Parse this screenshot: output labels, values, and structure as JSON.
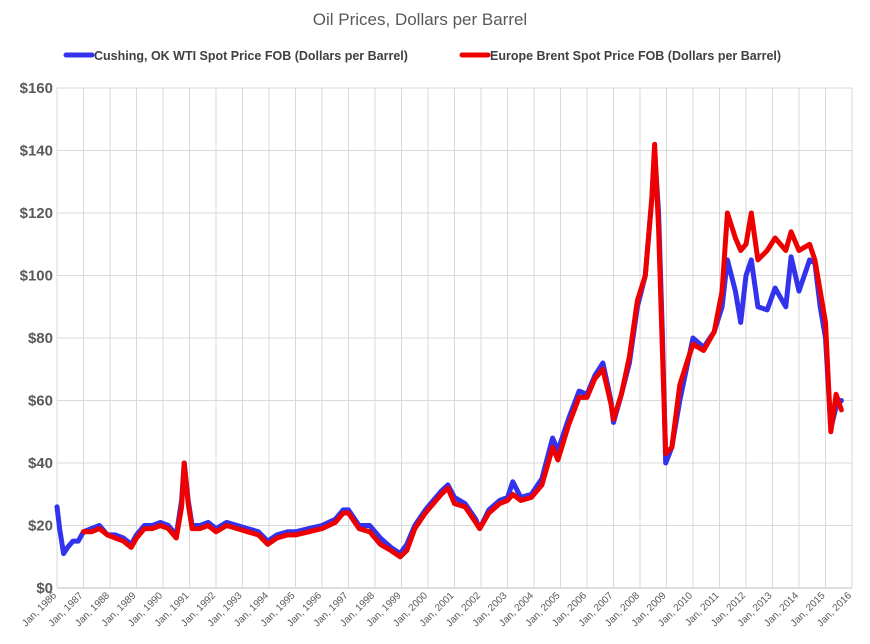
{
  "chart_data": {
    "type": "line",
    "title": "Oil Prices, Dollars  per Barrel",
    "xlabel": "",
    "ylabel": "",
    "ylim": [
      0,
      160
    ],
    "yticks": [
      0,
      20,
      40,
      60,
      80,
      100,
      120,
      140,
      160
    ],
    "ytick_labels": [
      "$0",
      "$20",
      "$40",
      "$60",
      "$80",
      "$100",
      "$120",
      "$140",
      "$160"
    ],
    "xlim": [
      1986,
      2016
    ],
    "xtick_labels": [
      "Jan, 1986",
      "Jan, 1987",
      "Jan, 1988",
      "Jan, 1989",
      "Jan, 1990",
      "Jan, 1991",
      "Jan, 1992",
      "Jan, 1993",
      "Jan, 1994",
      "Jan, 1995",
      "Jan, 1996",
      "Jan, 1997",
      "Jan, 1998",
      "Jan, 1999",
      "Jan, 2000",
      "Jan, 2001",
      "Jan, 2002",
      "Jan, 2003",
      "Jan, 2004",
      "Jan, 2005",
      "Jan, 2006",
      "Jan, 2007",
      "Jan, 2008",
      "Jan, 2009",
      "Jan, 2010",
      "Jan, 2011",
      "Jan, 2012",
      "Jan, 2013",
      "Jan, 2014",
      "Jan, 2015",
      "Jan, 2016"
    ],
    "grid": true,
    "legend_position": "top",
    "series": [
      {
        "name": "Cushing, OK WTI Spot Price FOB (Dollars per Barrel)",
        "color": "#3333ee",
        "x": [
          1986.0,
          1986.1,
          1986.25,
          1986.4,
          1986.6,
          1986.8,
          1987.0,
          1987.3,
          1987.6,
          1987.9,
          1988.2,
          1988.5,
          1988.8,
          1989.0,
          1989.3,
          1989.6,
          1989.9,
          1990.2,
          1990.5,
          1990.7,
          1990.8,
          1990.95,
          1991.1,
          1991.4,
          1991.7,
          1992.0,
          1992.4,
          1992.8,
          1993.2,
          1993.6,
          1993.95,
          1994.3,
          1994.7,
          1995.0,
          1995.5,
          1996.0,
          1996.5,
          1996.8,
          1997.0,
          1997.4,
          1997.8,
          1998.2,
          1998.6,
          1998.95,
          1999.2,
          1999.5,
          1999.9,
          2000.2,
          2000.5,
          2000.75,
          2001.0,
          2001.4,
          2001.8,
          2001.95,
          2002.3,
          2002.7,
          2003.0,
          2003.2,
          2003.5,
          2003.9,
          2004.3,
          2004.7,
          2004.9,
          2005.3,
          2005.7,
          2006.0,
          2006.3,
          2006.6,
          2006.9,
          2007.0,
          2007.3,
          2007.6,
          2007.9,
          2008.2,
          2008.45,
          2008.55,
          2008.7,
          2008.85,
          2008.97,
          2009.2,
          2009.5,
          2009.8,
          2010.0,
          2010.4,
          2010.8,
          2011.1,
          2011.3,
          2011.6,
          2011.8,
          2012.0,
          2012.2,
          2012.45,
          2012.8,
          2013.1,
          2013.5,
          2013.7,
          2014.0,
          2014.4,
          2014.6,
          2014.8,
          2015.0,
          2015.2,
          2015.4,
          2015.6
        ],
        "y": [
          26,
          19,
          11,
          13,
          15,
          15,
          18,
          19,
          20,
          17,
          17,
          16,
          14,
          17,
          20,
          20,
          21,
          20,
          17,
          28,
          40,
          28,
          20,
          20,
          21,
          19,
          21,
          20,
          19,
          18,
          15,
          17,
          18,
          18,
          19,
          20,
          22,
          25,
          25,
          20,
          20,
          16,
          13,
          11,
          14,
          20,
          25,
          28,
          31,
          33,
          29,
          27,
          22,
          19,
          25,
          28,
          29,
          34,
          29,
          30,
          35,
          48,
          44,
          54,
          63,
          62,
          68,
          72,
          60,
          53,
          62,
          72,
          90,
          100,
          125,
          140,
          120,
          80,
          40,
          45,
          60,
          72,
          80,
          77,
          82,
          90,
          105,
          95,
          85,
          100,
          105,
          90,
          89,
          96,
          90,
          106,
          95,
          105,
          104,
          90,
          80,
          51,
          58,
          60
        ]
      },
      {
        "name": "Europe Brent Spot Price FOB (Dollars per Barrel)",
        "color": "#ee0000",
        "x": [
          1987.0,
          1987.3,
          1987.6,
          1987.9,
          1988.2,
          1988.5,
          1988.8,
          1989.0,
          1989.3,
          1989.6,
          1989.9,
          1990.2,
          1990.5,
          1990.7,
          1990.8,
          1990.95,
          1991.1,
          1991.4,
          1991.7,
          1992.0,
          1992.4,
          1992.8,
          1993.2,
          1993.6,
          1993.95,
          1994.3,
          1994.7,
          1995.0,
          1995.5,
          1996.0,
          1996.5,
          1996.8,
          1997.0,
          1997.4,
          1997.8,
          1998.2,
          1998.6,
          1998.95,
          1999.2,
          1999.5,
          1999.9,
          2000.2,
          2000.5,
          2000.75,
          2001.0,
          2001.4,
          2001.8,
          2001.95,
          2002.3,
          2002.7,
          2003.0,
          2003.2,
          2003.5,
          2003.9,
          2004.3,
          2004.7,
          2004.9,
          2005.3,
          2005.7,
          2006.0,
          2006.3,
          2006.6,
          2006.9,
          2007.0,
          2007.3,
          2007.6,
          2007.9,
          2008.2,
          2008.45,
          2008.55,
          2008.7,
          2008.85,
          2008.97,
          2009.2,
          2009.5,
          2009.8,
          2010.0,
          2010.4,
          2010.8,
          2011.1,
          2011.3,
          2011.6,
          2011.8,
          2012.0,
          2012.2,
          2012.45,
          2012.8,
          2013.1,
          2013.5,
          2013.7,
          2014.0,
          2014.4,
          2014.6,
          2014.8,
          2015.0,
          2015.2,
          2015.4,
          2015.6
        ],
        "y": [
          18,
          18,
          19,
          17,
          16,
          15,
          13,
          16,
          19,
          19,
          20,
          19,
          16,
          26,
          40,
          27,
          19,
          19,
          20,
          18,
          20,
          19,
          18,
          17,
          14,
          16,
          17,
          17,
          18,
          19,
          21,
          24,
          24,
          19,
          18,
          14,
          12,
          10,
          12,
          19,
          24,
          27,
          30,
          32,
          27,
          26,
          21,
          19,
          24,
          27,
          28,
          30,
          28,
          29,
          33,
          45,
          41,
          52,
          61,
          61,
          67,
          70,
          59,
          54,
          62,
          74,
          92,
          100,
          125,
          142,
          115,
          75,
          43,
          45,
          65,
          73,
          78,
          76,
          82,
          95,
          120,
          112,
          108,
          110,
          120,
          105,
          108,
          112,
          108,
          114,
          108,
          110,
          105,
          95,
          85,
          50,
          62,
          57
        ]
      }
    ]
  }
}
